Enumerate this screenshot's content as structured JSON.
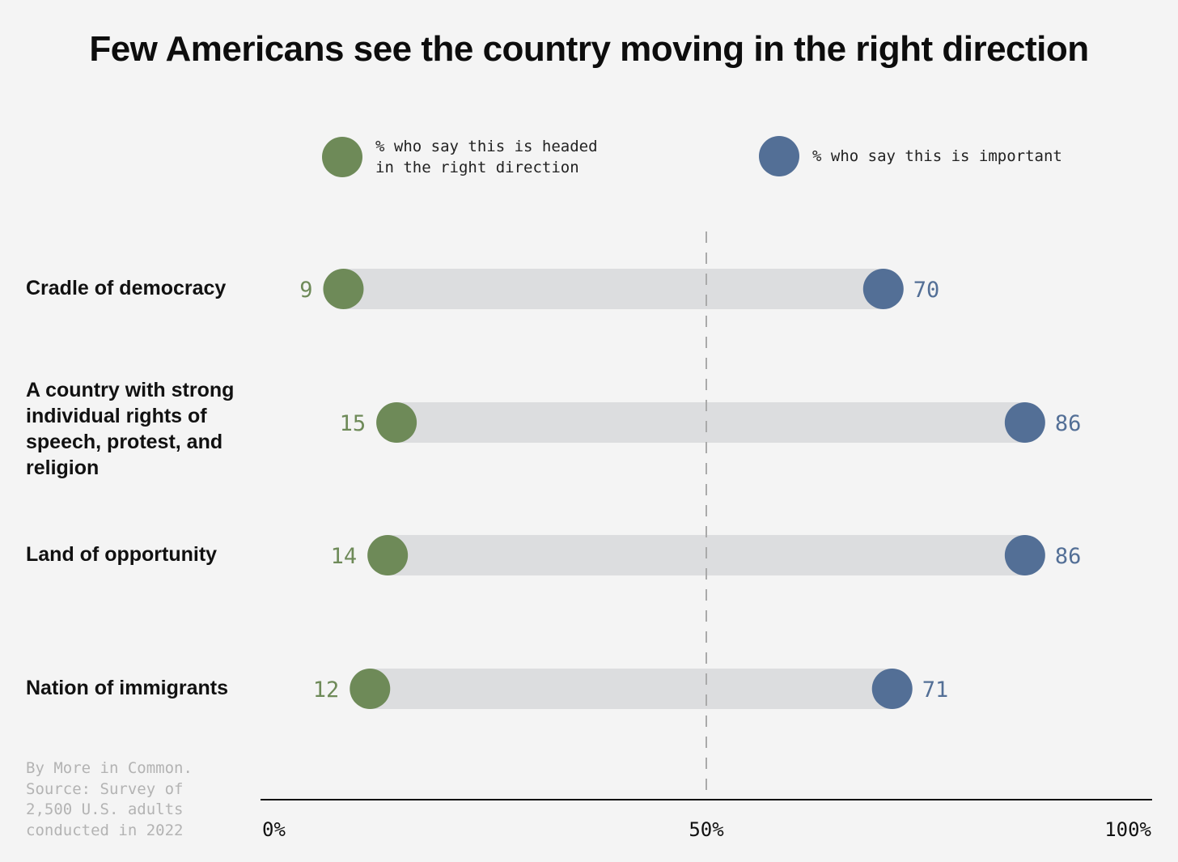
{
  "title": "Few Americans see the country moving in the right direction",
  "legend": [
    {
      "label": "% who say this is headed\nin the right direction",
      "color": "#6e8a58"
    },
    {
      "label": "% who say this is important",
      "color": "#536f96"
    }
  ],
  "source": "By More in Common.\nSource: Survey of\n2,500 U.S. adults\nconducted in 2022",
  "colors": {
    "green": "#6e8a58",
    "blue": "#536f96",
    "bar": "#dcdddf",
    "axis": "#111111",
    "midline": "#aaaaaa"
  },
  "chart_data": {
    "type": "dumbbell",
    "categories": [
      "Cradle of democracy",
      "A country with strong individual rights of speech, protest, and religion",
      "Land of opportunity",
      "Nation of immigrants"
    ],
    "series": [
      {
        "name": "% who say this is headed in the right direction",
        "values": [
          9,
          15,
          14,
          12
        ]
      },
      {
        "name": "% who say this is important",
        "values": [
          70,
          86,
          86,
          71
        ]
      }
    ],
    "xlim": [
      0,
      100
    ],
    "xticks": [
      "0%",
      "50%",
      "100%"
    ],
    "reference_line": 50,
    "grid": false,
    "legend_position": "top"
  }
}
